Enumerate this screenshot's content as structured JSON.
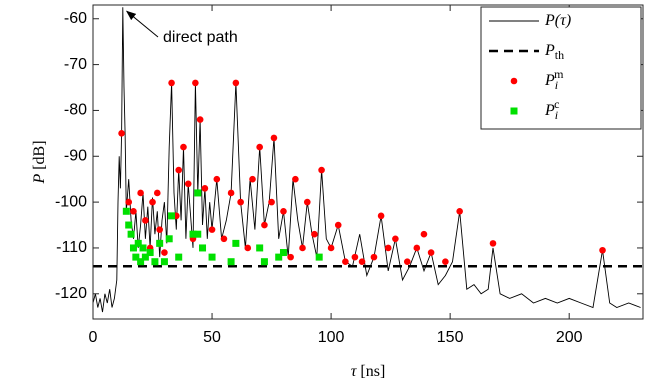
{
  "chart_data": {
    "type": "line",
    "xlabel": {
      "symbol": "τ",
      "unit": "[ns]"
    },
    "ylabel": {
      "symbol": "P",
      "unit": "[dB]"
    },
    "annotation": {
      "text": "direct path",
      "x": 12.5,
      "y": -57.5
    },
    "xlim": [
      0,
      231
    ],
    "ylim": [
      -125.5,
      -57
    ],
    "xticks": [
      0,
      50,
      100,
      150,
      200
    ],
    "yticks": [
      -60,
      -70,
      -80,
      -90,
      -100,
      -110,
      -120
    ],
    "legend": "upper right",
    "series": [
      {
        "type": "line",
        "name": "P(τ)",
        "color": "#000000",
        "x": [
          0,
          1,
          2,
          3,
          4,
          5,
          6,
          7,
          8,
          9,
          10,
          10.5,
          11,
          11.5,
          12,
          12.5,
          13,
          13.5,
          14,
          15,
          16,
          17,
          18,
          19,
          20,
          21,
          22,
          23,
          24,
          25,
          26,
          27,
          28,
          29,
          30,
          31,
          32,
          33,
          34,
          35,
          36,
          37,
          38,
          39,
          40,
          41,
          42,
          43,
          44,
          45,
          46,
          47,
          48,
          49,
          50,
          52,
          54,
          56,
          58,
          60,
          62,
          64,
          66,
          68,
          70,
          72,
          74,
          76,
          78,
          80,
          82,
          84,
          86,
          88,
          90,
          92,
          94,
          96,
          98,
          100,
          103,
          106,
          109,
          112,
          115,
          118,
          121,
          124,
          127,
          130,
          133,
          136,
          139,
          142,
          145,
          148,
          151,
          154,
          157,
          160,
          163,
          166,
          168,
          171,
          175,
          180,
          185,
          190,
          195,
          200,
          205,
          210,
          214,
          217,
          220,
          225,
          230
        ],
        "values": [
          -122,
          -120,
          -123,
          -121,
          -124,
          -120,
          -122,
          -119,
          -123,
          -121,
          -117,
          -100,
          -90,
          -97,
          -85,
          -57.5,
          -75,
          -85,
          -102,
          -95,
          -104,
          -108,
          -102,
          -110,
          -105,
          -98,
          -108,
          -101,
          -110,
          -99,
          -107,
          -102,
          -112,
          -104,
          -100,
          -109,
          -88,
          -74,
          -98,
          -106,
          -93,
          -104,
          -88,
          -108,
          -96,
          -103,
          -110,
          -74,
          -98,
          -82,
          -105,
          -97,
          -108,
          -100,
          -106,
          -95,
          -108,
          -104,
          -98,
          -74,
          -100,
          -110,
          -95,
          -106,
          -88,
          -105,
          -100,
          -86,
          -108,
          -102,
          -112,
          -95,
          -104,
          -110,
          -100,
          -107,
          -112,
          -93,
          -108,
          -110,
          -105,
          -113,
          -114,
          -107,
          -116,
          -112,
          -103,
          -115,
          -108,
          -117,
          -114,
          -110,
          -115,
          -111,
          -118,
          -116,
          -113,
          -102,
          -119,
          -118,
          -120,
          -119,
          -110,
          -120,
          -121,
          -120,
          -122,
          -121,
          -122,
          -121,
          -122,
          -123,
          -110.5,
          -122,
          -123,
          -122,
          -123
        ]
      },
      {
        "type": "hline",
        "name": "P",
        "subscript": "th",
        "color": "#000000",
        "value": -114
      },
      {
        "type": "scatter",
        "marker": "circle",
        "name": "P",
        "subscript": "i",
        "superscript": "m",
        "color": "#ff0000",
        "x": [
          12,
          15,
          17,
          20,
          22,
          24,
          25,
          27,
          28,
          30,
          33,
          35,
          36,
          38,
          40,
          42,
          43,
          45,
          47,
          50,
          52,
          55,
          58,
          60,
          62,
          65,
          67,
          70,
          72,
          75,
          76,
          80,
          83,
          85,
          88,
          90,
          93,
          96,
          100,
          103,
          106,
          110,
          113,
          118,
          121,
          124,
          127,
          132,
          136,
          139,
          142,
          148,
          154,
          168,
          214
        ],
        "values": [
          -85,
          -100,
          -102,
          -98,
          -104,
          -110,
          -100,
          -98,
          -106,
          -111,
          -74,
          -103,
          -93,
          -88,
          -96,
          -108,
          -74,
          -82,
          -97,
          -106,
          -95,
          -108,
          -98,
          -74,
          -100,
          -110,
          -95,
          -88,
          -105,
          -100,
          -86,
          -102,
          -112,
          -95,
          -110,
          -100,
          -107,
          -93,
          -110,
          -105,
          -113,
          -112,
          -113,
          -112,
          -103,
          -110,
          -108,
          -113,
          -110,
          -107,
          -111,
          -113,
          -102,
          -109,
          -110.5
        ]
      },
      {
        "type": "scatter",
        "marker": "square",
        "name": "P",
        "subscript": "i",
        "superscript": "c",
        "color": "#00e000",
        "x": [
          14,
          15,
          16,
          17,
          18,
          19,
          20,
          21,
          22,
          24,
          26,
          28,
          30,
          32,
          33,
          36,
          42,
          44,
          44,
          46,
          50,
          58,
          60,
          70,
          72,
          78,
          80,
          95
        ],
        "values": [
          -102,
          -105,
          -107,
          -110,
          -112,
          -109,
          -113,
          -110,
          -112,
          -111,
          -113,
          -109,
          -113,
          -108,
          -103,
          -112,
          -107,
          -107,
          -98,
          -110,
          -112,
          -113,
          -109,
          -110,
          -113,
          -112,
          -111,
          -112
        ]
      }
    ]
  }
}
